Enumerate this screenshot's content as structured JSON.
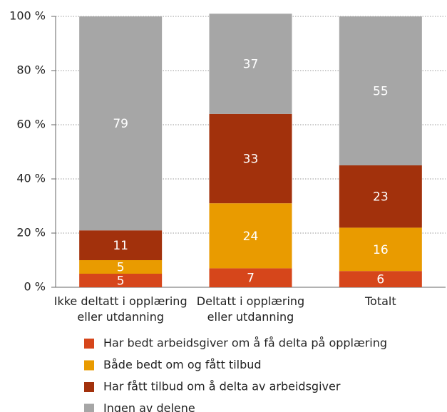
{
  "chart_data": {
    "type": "stacked_bar",
    "categories": [
      "Ikke deltatt i opplæring eller utdanning",
      "Deltatt i opplæring eller utdanning",
      "Totalt"
    ],
    "series": [
      {
        "name": "Har bedt arbeidsgiver om å få delta på opplæring",
        "color": "#d6461b",
        "values": [
          5,
          7,
          6
        ]
      },
      {
        "name": "Både bedt om og fått tilbud",
        "color": "#e99b00",
        "values": [
          5,
          24,
          16
        ]
      },
      {
        "name": "Har fått tilbud om å delta av arbeidsgiver",
        "color": "#a2310c",
        "values": [
          11,
          33,
          23
        ]
      },
      {
        "name": "Ingen av delene",
        "color": "#a6a6a6",
        "values": [
          79,
          37,
          55
        ]
      }
    ],
    "ylim": [
      0,
      100
    ],
    "yticks": [
      {
        "value": 0,
        "label": "0 %"
      },
      {
        "value": 20,
        "label": "20 %"
      },
      {
        "value": 40,
        "label": "40 %"
      },
      {
        "value": 60,
        "label": "60 %"
      },
      {
        "value": 80,
        "label": "80 %"
      },
      {
        "value": 100,
        "label": "100 %"
      }
    ],
    "grid": true,
    "legend": "bottom"
  }
}
